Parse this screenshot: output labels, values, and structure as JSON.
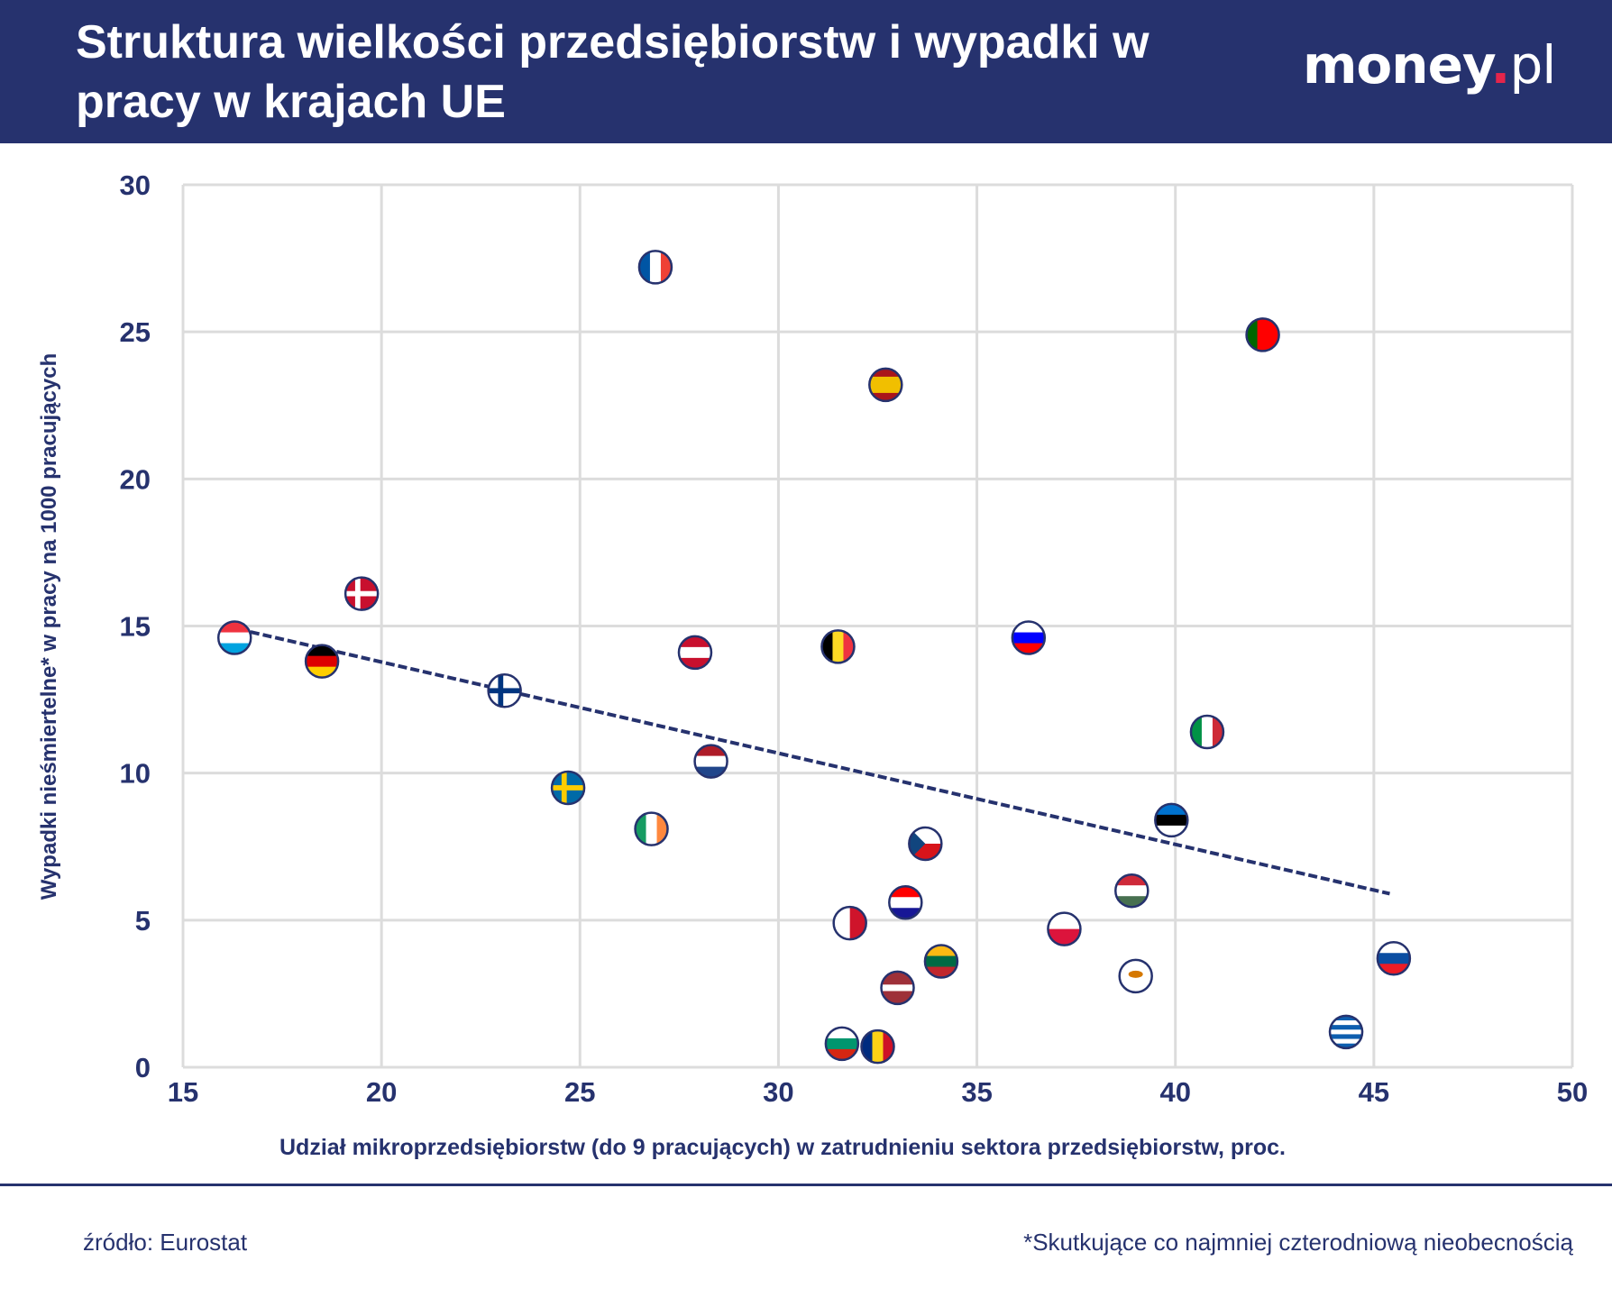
{
  "header": {
    "title": "Struktura wielkości przedsiębiorstw i wypadki w pracy w krajach UE",
    "logo": {
      "main": "money",
      "dot": ".",
      "suffix": "pl",
      "dot_color": "#e5254b"
    }
  },
  "colors": {
    "header_bg": "#26326e",
    "text": "#26326e",
    "grid": "#dcdcdc",
    "trend": "#26326e"
  },
  "footer": {
    "source": "źródło: Eurostat",
    "note": "*Skutkujące co najmniej czterodniową nieobecnością"
  },
  "chart_data": {
    "type": "scatter",
    "title": "Struktura wielkości przedsiębiorstw i wypadki w pracy w krajach UE",
    "xlabel": "Udział mikroprzedsiębiorstw (do 9 pracujących) w zatrudnieniu sektora przedsiębiorstw, proc.",
    "ylabel": "Wypadki nieśmiertelne* w pracy na 1000 pracujących",
    "xlim": [
      15,
      50
    ],
    "ylim": [
      0,
      30
    ],
    "xticks": [
      15,
      20,
      25,
      30,
      35,
      40,
      45,
      50
    ],
    "yticks": [
      0,
      5,
      10,
      15,
      20,
      25,
      30
    ],
    "grid": true,
    "marker": "country-flag",
    "trendline": {
      "style": "dashed",
      "x": [
        16.7,
        45.4
      ],
      "y": [
        14.8,
        5.9
      ]
    },
    "points": [
      {
        "icon": "flag-fr",
        "x": 26.9,
        "y": 27.2,
        "flag": {
          "t": "v",
          "c": [
            "#0055A4",
            "#ffffff",
            "#EF4135"
          ]
        }
      },
      {
        "icon": "flag-pt",
        "x": 42.2,
        "y": 24.9,
        "flag": {
          "t": "v",
          "c": [
            "#006600",
            "#FF0000",
            "#FF0000"
          ]
        }
      },
      {
        "icon": "flag-es",
        "x": 32.7,
        "y": 23.2,
        "flag": {
          "t": "h",
          "c": [
            "#AA151B",
            "#F1BF00",
            "#F1BF00",
            "#AA151B"
          ]
        }
      },
      {
        "icon": "flag-dk",
        "x": 19.5,
        "y": 16.1,
        "flag": {
          "t": "x",
          "c": [
            "#C8102E",
            "#ffffff"
          ]
        }
      },
      {
        "icon": "flag-lu",
        "x": 16.3,
        "y": 14.6,
        "flag": {
          "t": "h",
          "c": [
            "#EF3340",
            "#ffffff",
            "#00A3E0"
          ]
        }
      },
      {
        "icon": "flag-de",
        "x": 18.5,
        "y": 13.8,
        "flag": {
          "t": "h",
          "c": [
            "#000000",
            "#DD0000",
            "#FFCE00"
          ]
        }
      },
      {
        "icon": "flag-at",
        "x": 27.9,
        "y": 14.1,
        "flag": {
          "t": "h",
          "c": [
            "#C8102E",
            "#ffffff",
            "#C8102E"
          ]
        }
      },
      {
        "icon": "flag-be",
        "x": 31.5,
        "y": 14.3,
        "flag": {
          "t": "v",
          "c": [
            "#000000",
            "#FDDA24",
            "#EF3340"
          ]
        }
      },
      {
        "icon": "flag-si",
        "x": 36.3,
        "y": 14.6,
        "flag": {
          "t": "h",
          "c": [
            "#ffffff",
            "#0000FF",
            "#FF0000"
          ]
        }
      },
      {
        "icon": "flag-fi",
        "x": 23.1,
        "y": 12.8,
        "flag": {
          "t": "x",
          "c": [
            "#ffffff",
            "#003580"
          ]
        }
      },
      {
        "icon": "flag-it",
        "x": 40.8,
        "y": 11.4,
        "flag": {
          "t": "v",
          "c": [
            "#009246",
            "#ffffff",
            "#CE2B37"
          ]
        }
      },
      {
        "icon": "flag-nl",
        "x": 28.3,
        "y": 10.4,
        "flag": {
          "t": "h",
          "c": [
            "#AE1C28",
            "#ffffff",
            "#21468B"
          ]
        }
      },
      {
        "icon": "flag-se",
        "x": 24.7,
        "y": 9.5,
        "flag": {
          "t": "x",
          "c": [
            "#006AA7",
            "#FECC00"
          ]
        }
      },
      {
        "icon": "flag-ie",
        "x": 26.8,
        "y": 8.1,
        "flag": {
          "t": "v",
          "c": [
            "#169B62",
            "#ffffff",
            "#FF883E"
          ]
        }
      },
      {
        "icon": "flag-ee",
        "x": 39.9,
        "y": 8.4,
        "flag": {
          "t": "h",
          "c": [
            "#0072CE",
            "#000000",
            "#ffffff"
          ]
        }
      },
      {
        "icon": "flag-cz",
        "x": 33.7,
        "y": 7.6,
        "flag": {
          "t": "h",
          "c": [
            "#ffffff",
            "#D7141A"
          ],
          "tri": "#11457E"
        }
      },
      {
        "icon": "flag-hu",
        "x": 38.9,
        "y": 6.0,
        "flag": {
          "t": "h",
          "c": [
            "#CE2939",
            "#ffffff",
            "#477050"
          ]
        }
      },
      {
        "icon": "flag-hr",
        "x": 33.2,
        "y": 5.6,
        "flag": {
          "t": "h",
          "c": [
            "#FF0000",
            "#ffffff",
            "#171796"
          ]
        }
      },
      {
        "icon": "flag-mt",
        "x": 31.8,
        "y": 4.9,
        "flag": {
          "t": "v",
          "c": [
            "#ffffff",
            "#CF142B"
          ]
        }
      },
      {
        "icon": "flag-pl",
        "x": 37.2,
        "y": 4.7,
        "flag": {
          "t": "h",
          "c": [
            "#ffffff",
            "#DC143C"
          ]
        }
      },
      {
        "icon": "flag-lt",
        "x": 34.1,
        "y": 3.6,
        "flag": {
          "t": "h",
          "c": [
            "#FDB913",
            "#006A44",
            "#C1272D"
          ]
        }
      },
      {
        "icon": "flag-sk",
        "x": 45.5,
        "y": 3.7,
        "flag": {
          "t": "h",
          "c": [
            "#ffffff",
            "#0B4EA2",
            "#EE1C25"
          ]
        }
      },
      {
        "icon": "flag-cy",
        "x": 39.0,
        "y": 3.1,
        "flag": {
          "t": "h",
          "c": [
            "#ffffff"
          ],
          "dot": "#D57800"
        }
      },
      {
        "icon": "flag-lv",
        "x": 33.0,
        "y": 2.7,
        "flag": {
          "t": "h",
          "c": [
            "#9E3039",
            "#9E3039",
            "#ffffff",
            "#9E3039",
            "#9E3039"
          ]
        }
      },
      {
        "icon": "flag-gr",
        "x": 44.3,
        "y": 1.2,
        "flag": {
          "t": "h",
          "c": [
            "#0D5EAF",
            "#ffffff",
            "#0D5EAF",
            "#ffffff",
            "#0D5EAF",
            "#ffffff",
            "#0D5EAF"
          ]
        }
      },
      {
        "icon": "flag-bg",
        "x": 31.6,
        "y": 0.8,
        "flag": {
          "t": "h",
          "c": [
            "#ffffff",
            "#00966E",
            "#D62612"
          ]
        }
      },
      {
        "icon": "flag-ro",
        "x": 32.5,
        "y": 0.7,
        "flag": {
          "t": "v",
          "c": [
            "#002B7F",
            "#FCD116",
            "#CE1126"
          ]
        }
      }
    ]
  }
}
